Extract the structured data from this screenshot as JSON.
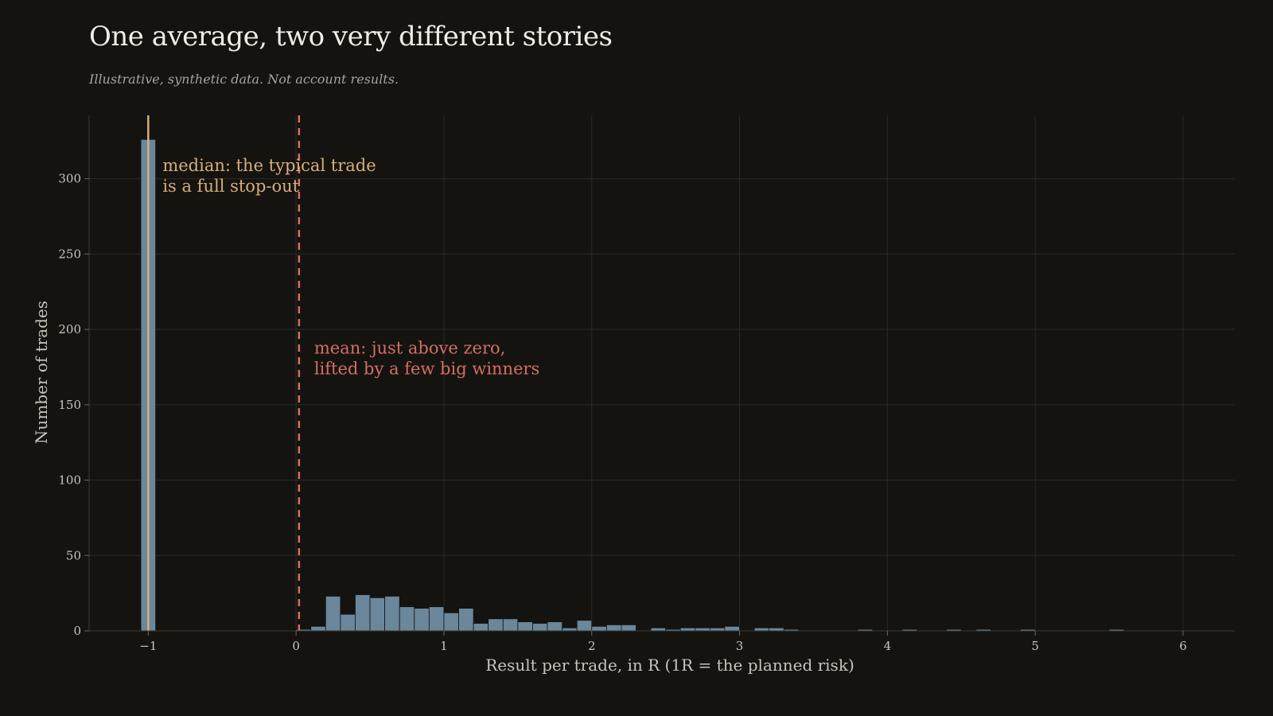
{
  "title": "One average, two very different stories",
  "subtitle": "Illustrative, synthetic data. Not account results.",
  "colors": {
    "background": "#141310",
    "bar": "#6a879c",
    "median": "#d8ae7a",
    "mean": "#d46f62",
    "grid": "#2a2925",
    "text": "#c9c4b9"
  },
  "chart_data": {
    "type": "bar",
    "xlabel": "Result per trade, in R (1R = the planned risk)",
    "ylabel": "Number of trades",
    "xlim": [
      -1.4,
      6.35
    ],
    "ylim": [
      0,
      342
    ],
    "xticks": [
      -1,
      0,
      1,
      2,
      3,
      4,
      5,
      6
    ],
    "xtick_labels": [
      "−1",
      "0",
      "1",
      "2",
      "3",
      "4",
      "5",
      "6"
    ],
    "yticks": [
      0,
      50,
      100,
      150,
      200,
      250,
      300
    ],
    "grid": true,
    "bin_width": 0.1,
    "bins": [
      {
        "x": -1.0,
        "count": 326
      },
      {
        "x": 0.05,
        "count": 1
      },
      {
        "x": 0.15,
        "count": 3
      },
      {
        "x": 0.25,
        "count": 23
      },
      {
        "x": 0.35,
        "count": 11
      },
      {
        "x": 0.45,
        "count": 24
      },
      {
        "x": 0.55,
        "count": 22
      },
      {
        "x": 0.65,
        "count": 23
      },
      {
        "x": 0.75,
        "count": 16
      },
      {
        "x": 0.85,
        "count": 15
      },
      {
        "x": 0.95,
        "count": 16
      },
      {
        "x": 1.05,
        "count": 12
      },
      {
        "x": 1.15,
        "count": 15
      },
      {
        "x": 1.25,
        "count": 5
      },
      {
        "x": 1.35,
        "count": 8
      },
      {
        "x": 1.45,
        "count": 8
      },
      {
        "x": 1.55,
        "count": 6
      },
      {
        "x": 1.65,
        "count": 5
      },
      {
        "x": 1.75,
        "count": 6
      },
      {
        "x": 1.85,
        "count": 2
      },
      {
        "x": 1.95,
        "count": 7
      },
      {
        "x": 2.05,
        "count": 3
      },
      {
        "x": 2.15,
        "count": 4
      },
      {
        "x": 2.25,
        "count": 4
      },
      {
        "x": 2.45,
        "count": 2
      },
      {
        "x": 2.55,
        "count": 1
      },
      {
        "x": 2.65,
        "count": 2
      },
      {
        "x": 2.75,
        "count": 2
      },
      {
        "x": 2.85,
        "count": 2
      },
      {
        "x": 2.95,
        "count": 3
      },
      {
        "x": 3.15,
        "count": 2
      },
      {
        "x": 3.25,
        "count": 2
      },
      {
        "x": 3.35,
        "count": 1
      },
      {
        "x": 3.85,
        "count": 1
      },
      {
        "x": 4.15,
        "count": 1
      },
      {
        "x": 4.45,
        "count": 1
      },
      {
        "x": 4.65,
        "count": 1
      },
      {
        "x": 4.95,
        "count": 1
      },
      {
        "x": 5.55,
        "count": 1
      }
    ],
    "median": -1.0,
    "mean": 0.02,
    "annotations": [
      {
        "name": "median",
        "lines": [
          "median: the typical trade",
          "is a full stop-out"
        ]
      },
      {
        "name": "mean",
        "lines": [
          "mean: just above zero,",
          "lifted by a few big winners"
        ]
      }
    ]
  }
}
